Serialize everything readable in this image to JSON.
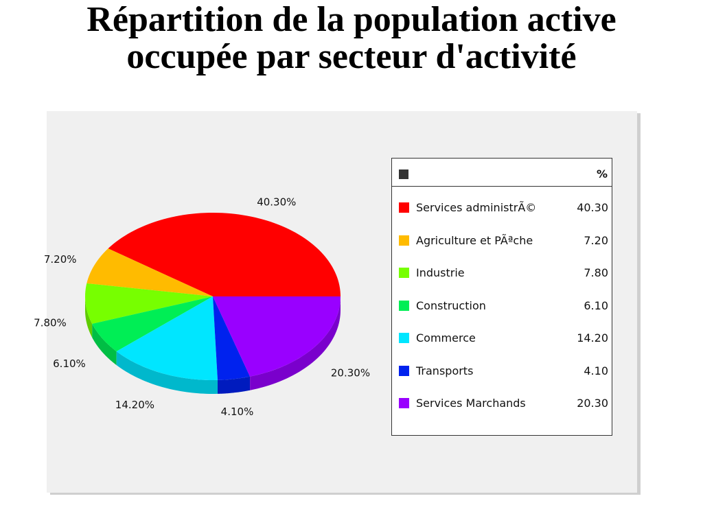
{
  "title": {
    "line1": "Répartition de la population active",
    "line2": "occupée par secteur d'activité"
  },
  "chart_data": {
    "type": "pie",
    "title": "Répartition de la population active occupée par secteur d'activité",
    "categories": [
      "Services administrÃ©",
      "Agriculture et PÃªche",
      "Industrie",
      "Construction",
      "Commerce",
      "Transports",
      "Services Marchands"
    ],
    "values": [
      40.3,
      7.2,
      7.8,
      6.1,
      14.2,
      4.1,
      20.3
    ],
    "value_labels": [
      "40.30%",
      "7.20%",
      "7.80%",
      "6.10%",
      "14.20%",
      "4.10%",
      "20.30%"
    ],
    "legend_values": [
      "40.30",
      "7.20",
      "7.80",
      "6.10",
      "14.20",
      "4.10",
      "20.30"
    ],
    "colors": [
      "#ff0000",
      "#ffbb00",
      "#77ff00",
      "#00ee55",
      "#00e6ff",
      "#0022ee",
      "#9900ff"
    ],
    "legend_header": "%",
    "legend_position": "right",
    "style": "3d"
  }
}
